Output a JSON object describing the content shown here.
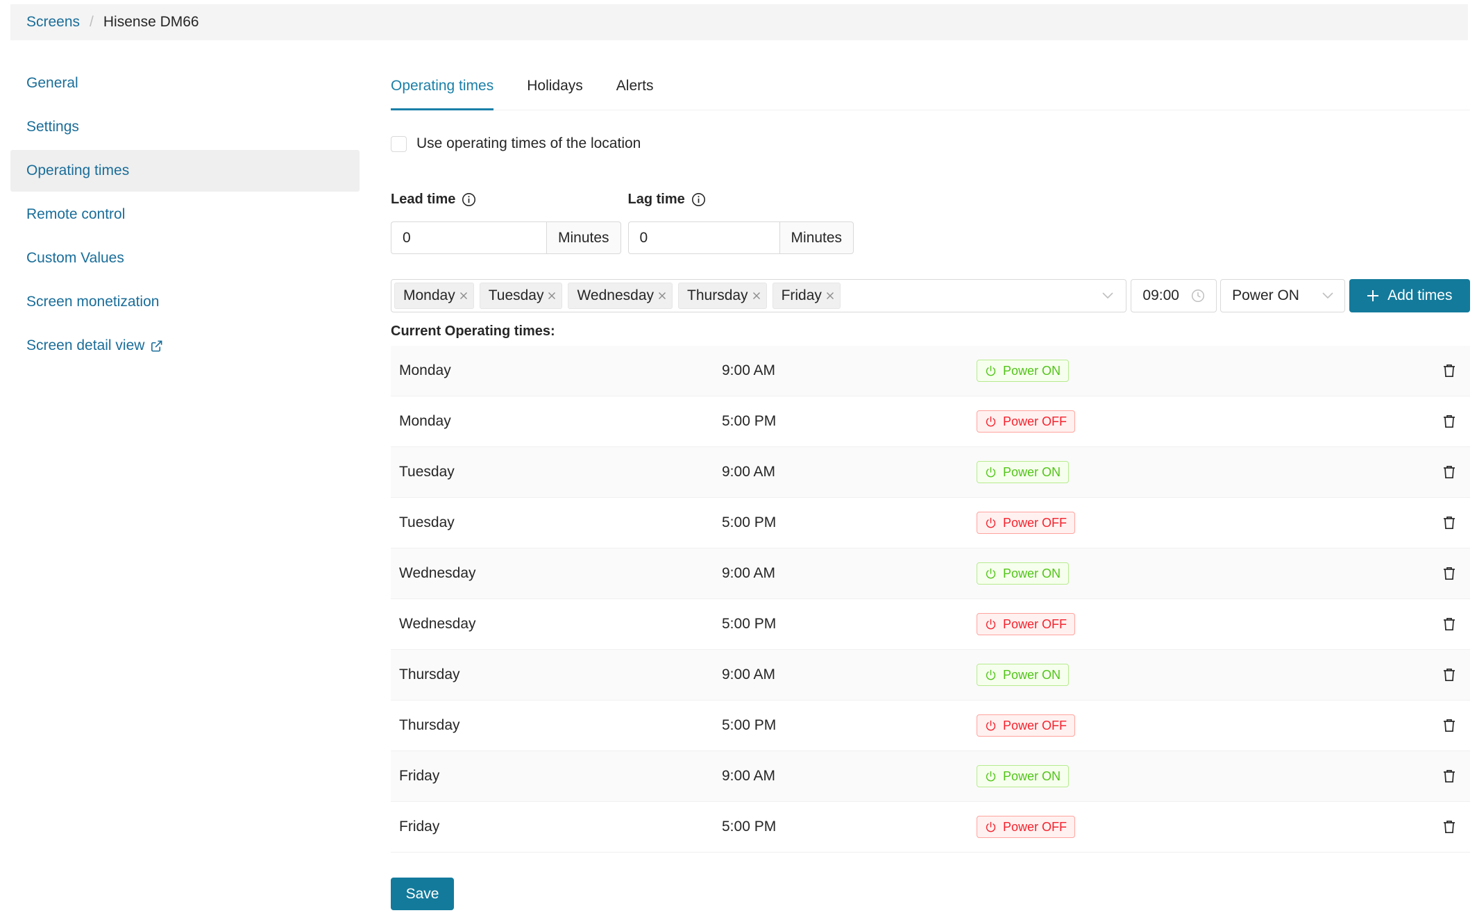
{
  "breadcrumb": {
    "root": "Screens",
    "separator": "/",
    "current": "Hisense DM66"
  },
  "sidebar": {
    "items": [
      {
        "label": "General",
        "name": "sidebar-item-general",
        "active": false
      },
      {
        "label": "Settings",
        "name": "sidebar-item-settings",
        "active": false
      },
      {
        "label": "Operating times",
        "name": "sidebar-item-operating-times",
        "active": true
      },
      {
        "label": "Remote control",
        "name": "sidebar-item-remote-control",
        "active": false
      },
      {
        "label": "Custom Values",
        "name": "sidebar-item-custom-values",
        "active": false
      },
      {
        "label": "Screen monetization",
        "name": "sidebar-item-screen-monetization",
        "active": false
      },
      {
        "label": "Screen detail view",
        "name": "sidebar-item-screen-detail-view",
        "active": false,
        "icon": "external-link-icon"
      }
    ]
  },
  "tabs": [
    {
      "label": "Operating times",
      "name": "tab-operating-times",
      "active": true
    },
    {
      "label": "Holidays",
      "name": "tab-holidays",
      "active": false
    },
    {
      "label": "Alerts",
      "name": "tab-alerts",
      "active": false
    }
  ],
  "use_location": {
    "label": "Use operating times of the location",
    "checked": false
  },
  "lead_time": {
    "label": "Lead time",
    "value": "0",
    "unit": "Minutes",
    "icon": "info-icon"
  },
  "lag_time": {
    "label": "Lag time",
    "value": "0",
    "unit": "Minutes",
    "icon": "info-icon"
  },
  "add_form": {
    "selected_days": [
      "Monday",
      "Tuesday",
      "Wednesday",
      "Thursday",
      "Friday"
    ],
    "time": "09:00",
    "power": "Power ON",
    "add_label": "Add times"
  },
  "current": {
    "title": "Current Operating times:",
    "rows": [
      {
        "day": "Monday",
        "time": "9:00 AM",
        "status": "Power ON",
        "on": true
      },
      {
        "day": "Monday",
        "time": "5:00 PM",
        "status": "Power OFF",
        "on": false
      },
      {
        "day": "Tuesday",
        "time": "9:00 AM",
        "status": "Power ON",
        "on": true
      },
      {
        "day": "Tuesday",
        "time": "5:00 PM",
        "status": "Power OFF",
        "on": false
      },
      {
        "day": "Wednesday",
        "time": "9:00 AM",
        "status": "Power ON",
        "on": true
      },
      {
        "day": "Wednesday",
        "time": "5:00 PM",
        "status": "Power OFF",
        "on": false
      },
      {
        "day": "Thursday",
        "time": "9:00 AM",
        "status": "Power ON",
        "on": true
      },
      {
        "day": "Thursday",
        "time": "5:00 PM",
        "status": "Power OFF",
        "on": false
      },
      {
        "day": "Friday",
        "time": "9:00 AM",
        "status": "Power ON",
        "on": true
      },
      {
        "day": "Friday",
        "time": "5:00 PM",
        "status": "Power OFF",
        "on": false
      }
    ]
  },
  "save_label": "Save",
  "colors": {
    "link": "#1a6d99",
    "primary": "#137a9b",
    "on": "#52c41a",
    "off": "#f5222d"
  }
}
